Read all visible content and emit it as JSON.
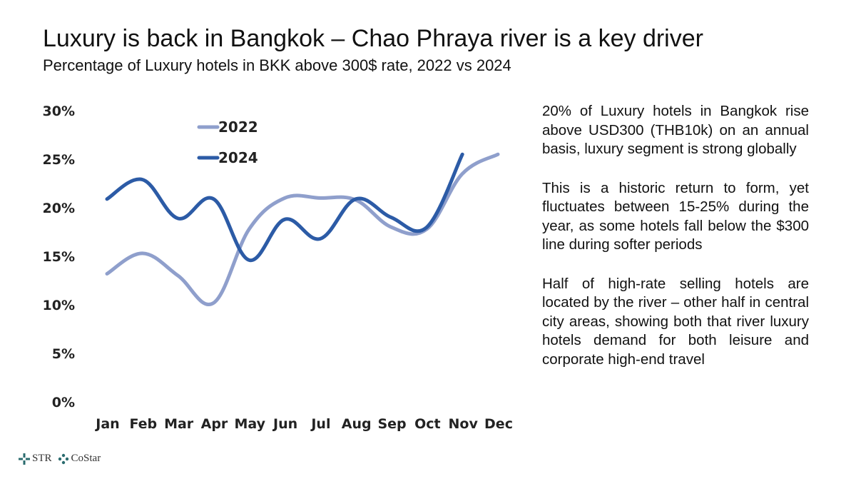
{
  "header": {
    "title": "Luxury is back in Bangkok – Chao Phraya river is a key driver",
    "subtitle": "Percentage of Luxury hotels in BKK above 300$ rate, 2022 vs 2024"
  },
  "chart_data": {
    "type": "line",
    "categories": [
      "Jan",
      "Feb",
      "Mar",
      "Apr",
      "May",
      "Jun",
      "Jul",
      "Aug",
      "Sep",
      "Oct",
      "Nov",
      "Dec"
    ],
    "y_ticks": [
      "0%",
      "5%",
      "10%",
      "15%",
      "20%",
      "25%",
      "30%"
    ],
    "ylim": [
      0,
      30
    ],
    "grid": false,
    "legend_position": "top-left",
    "series": [
      {
        "name": "2022",
        "color": "#8f9fcc",
        "values": [
          13.2,
          15.3,
          13.0,
          10.2,
          17.8,
          21.0,
          21.0,
          20.8,
          18.0,
          17.8,
          23.5,
          25.5
        ]
      },
      {
        "name": "2024",
        "color": "#2c5ba6",
        "values": [
          20.9,
          22.9,
          18.9,
          20.9,
          14.6,
          18.8,
          16.8,
          20.9,
          19.0,
          18.0,
          25.5,
          null
        ]
      }
    ]
  },
  "notes": [
    "20% of Luxury hotels in Bangkok rise above USD300 (THB10k) on an annual basis, luxury segment is strong globally",
    "This is a historic return to form, yet fluctuates between 15-25% during the year, as some hotels fall below the $300 line during softer periods",
    "Half of high-rate selling hotels are located by the river – other half in central city areas, showing both that river luxury hotels demand for both leisure and corporate high-end travel"
  ],
  "footer": {
    "logos": [
      "STR",
      "CoStar"
    ],
    "colors": {
      "logo": "#2a6b6e"
    }
  }
}
